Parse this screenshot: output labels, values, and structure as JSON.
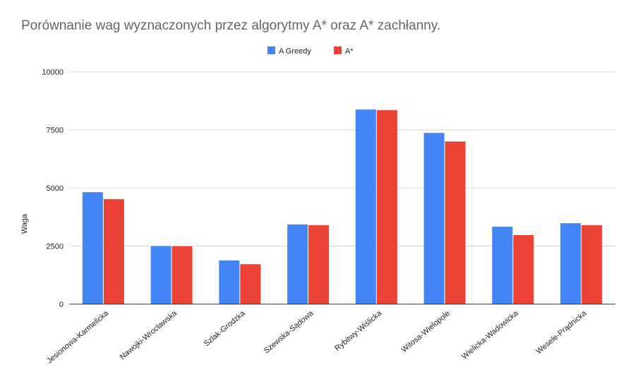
{
  "chart_data": {
    "type": "bar",
    "title": "Porównanie wag wyznaczonych przez algorytmy A* oraz A* zachłanny.",
    "xlabel": "",
    "ylabel": "Waga",
    "ylim": [
      0,
      10000
    ],
    "yticks": [
      "0",
      "2500",
      "5000",
      "7500",
      "10000"
    ],
    "ytick_values": [
      0,
      2500,
      5000,
      7500,
      10000
    ],
    "grid": true,
    "legend_position": "top",
    "categories": [
      "Jesionowa-Karmelicka",
      "Nawojki-Wrocławska",
      "Szlak-Grodzka",
      "Szewska-Sądowa",
      "Rybitwy-Wiślicka",
      "Witosa-Wielopole",
      "Wielicka-Wadowicka",
      "Wesele-Prądnicka"
    ],
    "series": [
      {
        "name": "A Greedy",
        "color": "#4285f4",
        "values": [
          4820,
          2500,
          1880,
          3430,
          8380,
          7370,
          3330,
          3480
        ]
      },
      {
        "name": "A*",
        "color": "#ea4335",
        "values": [
          4520,
          2490,
          1720,
          3400,
          8350,
          7000,
          2970,
          3400
        ]
      }
    ]
  }
}
